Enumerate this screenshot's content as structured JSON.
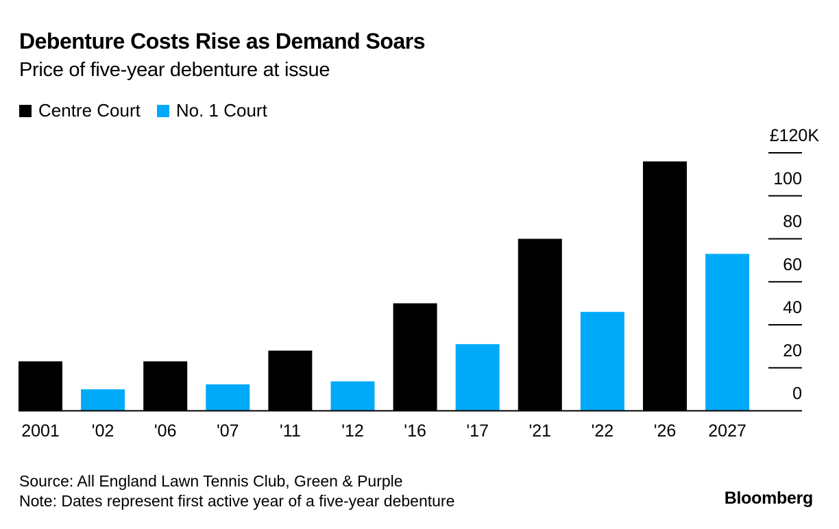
{
  "colors": {
    "centre": "#000000",
    "no1": "#00aaf9",
    "axis": "#000000"
  },
  "chart_data": {
    "type": "bar",
    "title": "Debenture Costs Rise as Demand Soars",
    "subtitle": "Price of five-year debenture at issue",
    "xlabel": "",
    "ylabel": "",
    "ylim": [
      0,
      120
    ],
    "y_unit": "£ thousands",
    "yticks": [
      0,
      20,
      40,
      60,
      80,
      100,
      120
    ],
    "ytick_labels": [
      "0",
      "20",
      "40",
      "60",
      "80",
      "100",
      "£120K"
    ],
    "grid": false,
    "legend_position": "top-left",
    "legend": [
      {
        "name": "Centre Court",
        "color": "#000000"
      },
      {
        "name": "No. 1 Court",
        "color": "#00aaf9"
      }
    ],
    "categories": [
      "2001",
      "'02",
      "'06",
      "'07",
      "'11",
      "'12",
      "'16",
      "'17",
      "'21",
      "'22",
      "'26",
      "2027"
    ],
    "bars": [
      {
        "label": "2001",
        "series": "Centre Court",
        "value": 23
      },
      {
        "label": "'02",
        "series": "No. 1 Court",
        "value": 10
      },
      {
        "label": "'06",
        "series": "Centre Court",
        "value": 23
      },
      {
        "label": "'07",
        "series": "No. 1 Court",
        "value": 12.3
      },
      {
        "label": "'11",
        "series": "Centre Court",
        "value": 28
      },
      {
        "label": "'12",
        "series": "No. 1 Court",
        "value": 13.7
      },
      {
        "label": "'16",
        "series": "Centre Court",
        "value": 50
      },
      {
        "label": "'17",
        "series": "No. 1 Court",
        "value": 31
      },
      {
        "label": "'21",
        "series": "Centre Court",
        "value": 80
      },
      {
        "label": "'22",
        "series": "No. 1 Court",
        "value": 46
      },
      {
        "label": "'26",
        "series": "Centre Court",
        "value": 116
      },
      {
        "label": "2027",
        "series": "No. 1 Court",
        "value": 73
      }
    ]
  },
  "footer": {
    "source": "Source: All England Lawn Tennis Club, Green & Purple",
    "note": "Note: Dates represent first active year of a five-year debenture"
  },
  "brand": "Bloomberg"
}
